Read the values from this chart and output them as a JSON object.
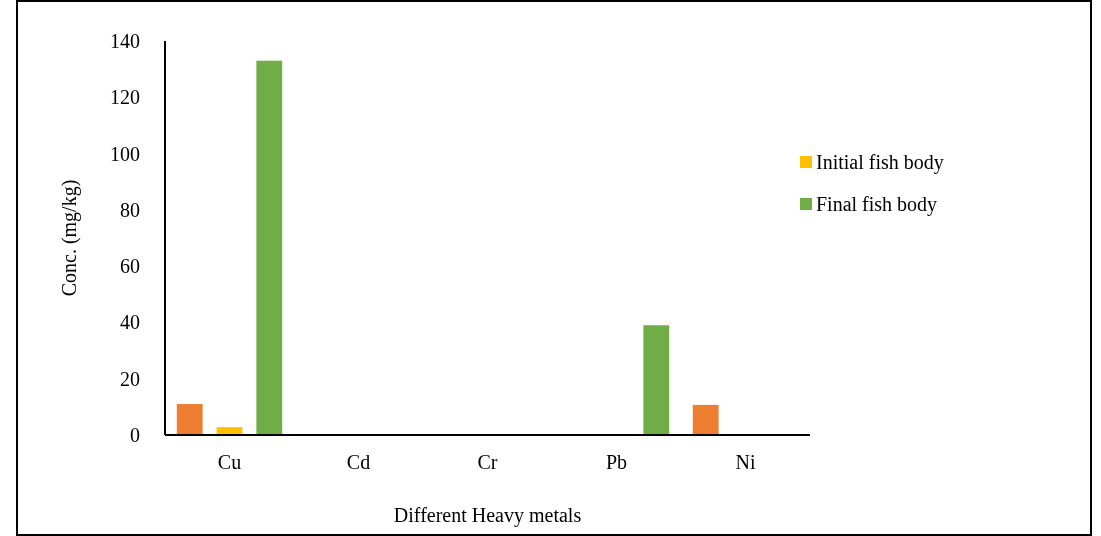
{
  "chart_data": {
    "type": "bar",
    "xlabel": "Different Heavy metals",
    "ylabel": "Conc. (mg/kg)",
    "categories": [
      "Cu",
      "Cd",
      "Cr",
      "Pb",
      "Ni"
    ],
    "series": [
      {
        "color": "#ed7d31",
        "values": [
          11,
          null,
          null,
          0,
          10.7
        ]
      },
      {
        "name": "Initial fish body",
        "color": "#ffc000",
        "values": [
          2.8,
          0,
          0,
          0,
          0
        ]
      },
      {
        "name": "Final fish body",
        "color": "#70ad47",
        "values": [
          133,
          null,
          null,
          39,
          0
        ]
      }
    ],
    "ylim": [
      0,
      140
    ],
    "yticks": [
      0,
      20,
      40,
      60,
      80,
      100,
      120,
      140
    ],
    "grid": false,
    "legend": "right"
  }
}
